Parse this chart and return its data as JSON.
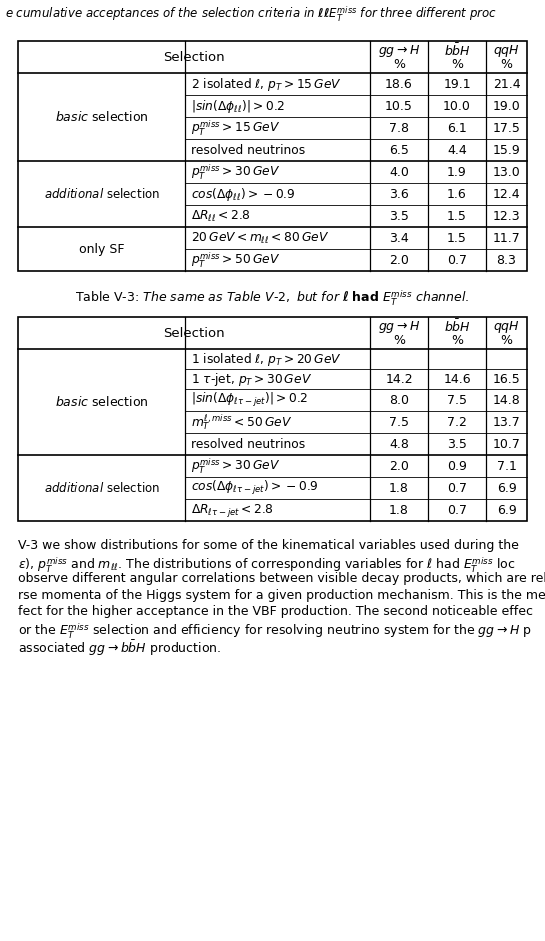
{
  "table1": {
    "row_groups": [
      {
        "group_label": "basic",
        "rows": [
          [
            "2 isolated $\\ell$, $p_T > 15\\,GeV$",
            "18.6",
            "19.1",
            "21.4"
          ],
          [
            "$|sin(\\Delta\\phi_{\\ell\\ell})| > 0.2$",
            "10.5",
            "10.0",
            "19.0"
          ],
          [
            "$p_T^{miss} > 15\\,GeV$",
            "7.8",
            "6.1",
            "17.5"
          ],
          [
            "resolved neutrinos",
            "6.5",
            "4.4",
            "15.9"
          ]
        ]
      },
      {
        "group_label": "additional",
        "rows": [
          [
            "$p_T^{miss} > 30\\,GeV$",
            "4.0",
            "1.9",
            "13.0"
          ],
          [
            "$cos(\\Delta\\phi_{\\ell\\ell}) > -0.9$",
            "3.6",
            "1.6",
            "12.4"
          ],
          [
            "$\\Delta R_{\\ell\\ell} < 2.8$",
            "3.5",
            "1.5",
            "12.3"
          ]
        ]
      },
      {
        "group_label": "onlySF",
        "rows": [
          [
            "$20\\,GeV < m_{\\ell\\ell} < 80\\,GeV$",
            "3.4",
            "1.5",
            "11.7"
          ],
          [
            "$p_T^{miss} > 50\\,GeV$",
            "2.0",
            "0.7",
            "8.3"
          ]
        ]
      }
    ]
  },
  "table2": {
    "row_groups": [
      {
        "group_label": "basic",
        "rows": [
          [
            "1 isolated $\\ell$, $p_T > 20\\,GeV$",
            "",
            "",
            ""
          ],
          [
            "1 $\\tau$-jet, $p_T > 30\\,GeV$",
            "14.2",
            "14.6",
            "16.5"
          ],
          [
            "$|sin(\\Delta\\phi_{\\ell\\tau-jet})| > 0.2$",
            "8.0",
            "7.5",
            "14.8"
          ],
          [
            "$m_T^{\\ell,miss} < 50\\,GeV$",
            "7.5",
            "7.2",
            "13.7"
          ],
          [
            "resolved neutrinos",
            "4.8",
            "3.5",
            "10.7"
          ]
        ]
      },
      {
        "group_label": "additional",
        "rows": [
          [
            "$p_T^{miss} > 30\\,GeV$",
            "2.0",
            "0.9",
            "7.1"
          ],
          [
            "$cos(\\Delta\\phi_{\\ell\\tau-jet}) > -0.9$",
            "1.8",
            "0.7",
            "6.9"
          ],
          [
            "$\\Delta R_{\\ell\\tau-jet} < 2.8$",
            "1.8",
            "0.7",
            "6.9"
          ]
        ]
      }
    ]
  },
  "body_lines": [
    "V-3 we show distributions for some of the kinematical variables used during the",
    "$\\epsilon$), $p_T^{miss}$ and $m_{\\ell\\ell}$. The distributions of corresponding variables for $\\ell$ had $E_T^{miss}$ loc",
    "observe different angular correlations between visible decay products, which are rel",
    "rse momenta of the Higgs system for a given production mechanism. This is the me",
    "fect for the higher acceptance in the VBF production. The second noticeable effec",
    "or the $E_T^{miss}$ selection and efficiency for resolving neutrino system for the $gg \\rightarrow H$ p",
    "associated $gg \\rightarrow b\\bar{b}H$ production."
  ]
}
